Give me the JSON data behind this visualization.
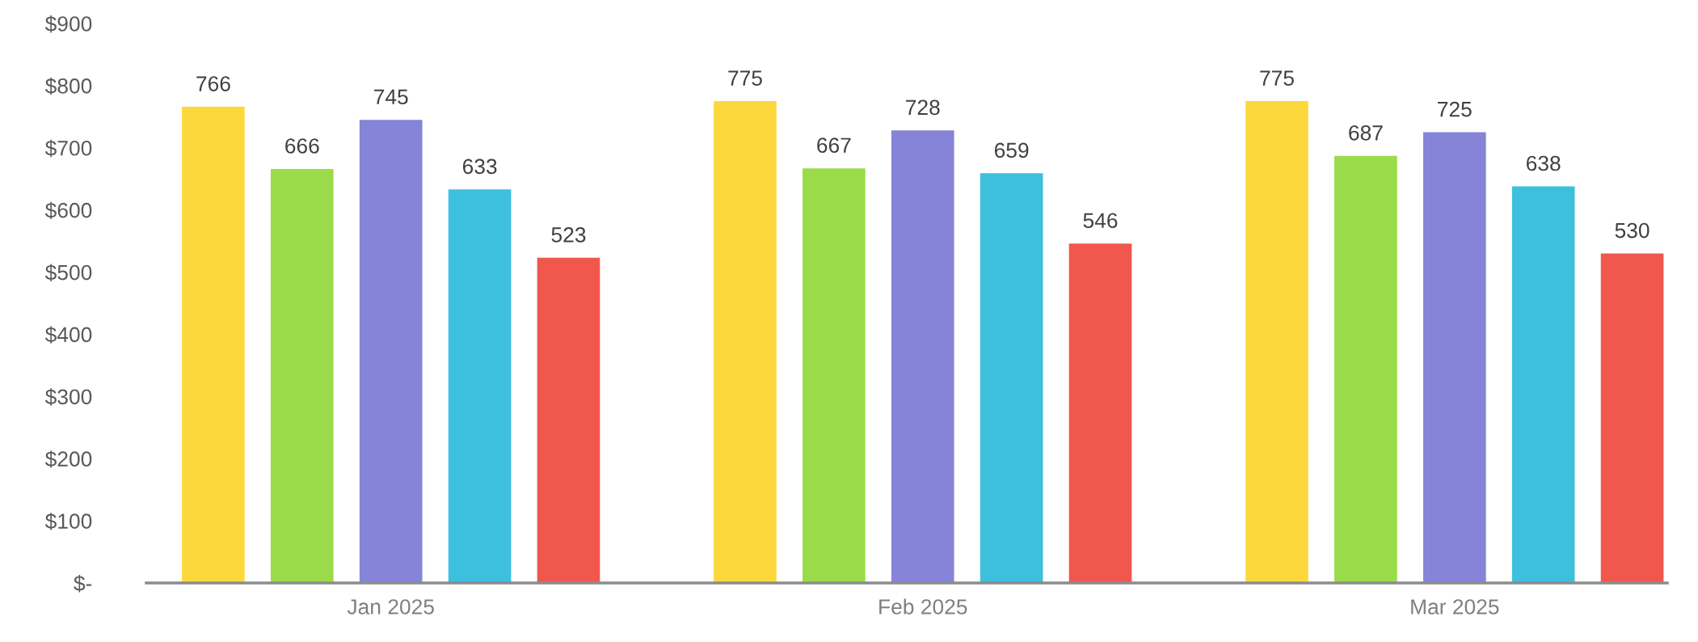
{
  "chart_data": {
    "type": "bar",
    "categories": [
      "Jan 2025",
      "Feb 2025",
      "Mar 2025"
    ],
    "series": [
      {
        "color": "#fdd83c",
        "values": [
          766,
          775,
          775
        ]
      },
      {
        "color": "#9adb4a",
        "values": [
          666,
          667,
          687
        ]
      },
      {
        "color": "#8584d9",
        "values": [
          745,
          728,
          725
        ]
      },
      {
        "color": "#3dbfde",
        "values": [
          633,
          659,
          638
        ]
      },
      {
        "color": "#f0574d",
        "values": [
          523,
          546,
          530
        ]
      }
    ],
    "ylim": [
      0,
      900
    ],
    "yticks": [
      {
        "value": 0,
        "label": "$-"
      },
      {
        "value": 100,
        "label": "$100"
      },
      {
        "value": 200,
        "label": "$200"
      },
      {
        "value": 300,
        "label": "$300"
      },
      {
        "value": 400,
        "label": "$400"
      },
      {
        "value": 500,
        "label": "$500"
      },
      {
        "value": 600,
        "label": "$600"
      },
      {
        "value": 700,
        "label": "$700"
      },
      {
        "value": 800,
        "label": "$800"
      },
      {
        "value": 900,
        "label": "$900"
      }
    ],
    "grid": false,
    "legend": false,
    "data_labels": true
  }
}
